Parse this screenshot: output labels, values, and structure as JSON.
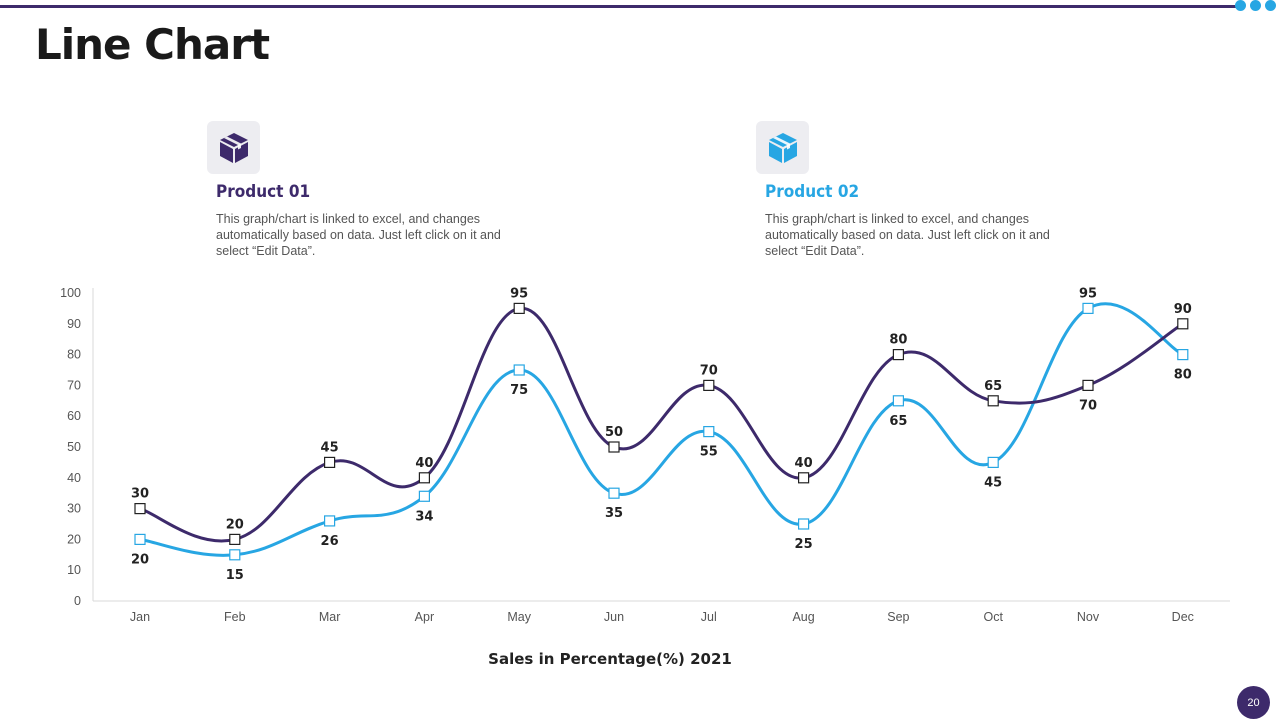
{
  "page": {
    "title": "Line Chart",
    "page_number": "20"
  },
  "products": [
    {
      "name": "Product 01",
      "description": "This graph/chart is linked to excel, and changes automatically based on data. Just left click on it and select “Edit Data”.",
      "icon": "cube-icon",
      "color": "#3d2a6b"
    },
    {
      "name": "Product 02",
      "description": "This graph/chart is linked to excel, and changes automatically based on data. Just left click on it and select “Edit Data”.",
      "icon": "cube-icon",
      "color": "#27a6e3"
    }
  ],
  "chart_data": {
    "type": "line",
    "title": "",
    "xlabel": "Sales in Percentage(%) 2021",
    "ylabel": "",
    "categories": [
      "Jan",
      "Feb",
      "Mar",
      "Apr",
      "May",
      "Jun",
      "Jul",
      "Aug",
      "Sep",
      "Oct",
      "Nov",
      "Dec"
    ],
    "series": [
      {
        "name": "Product 01",
        "color": "#3d2a6b",
        "values": [
          30,
          20,
          45,
          40,
          95,
          50,
          70,
          40,
          80,
          65,
          70,
          90
        ]
      },
      {
        "name": "Product 02",
        "color": "#27a6e3",
        "values": [
          20,
          15,
          26,
          34,
          75,
          35,
          55,
          25,
          65,
          45,
          95,
          80
        ]
      }
    ],
    "ylim": [
      0,
      100
    ],
    "yticks": [
      0,
      10,
      20,
      30,
      40,
      50,
      60,
      70,
      80,
      90,
      100
    ],
    "grid": false,
    "legend": "none"
  }
}
